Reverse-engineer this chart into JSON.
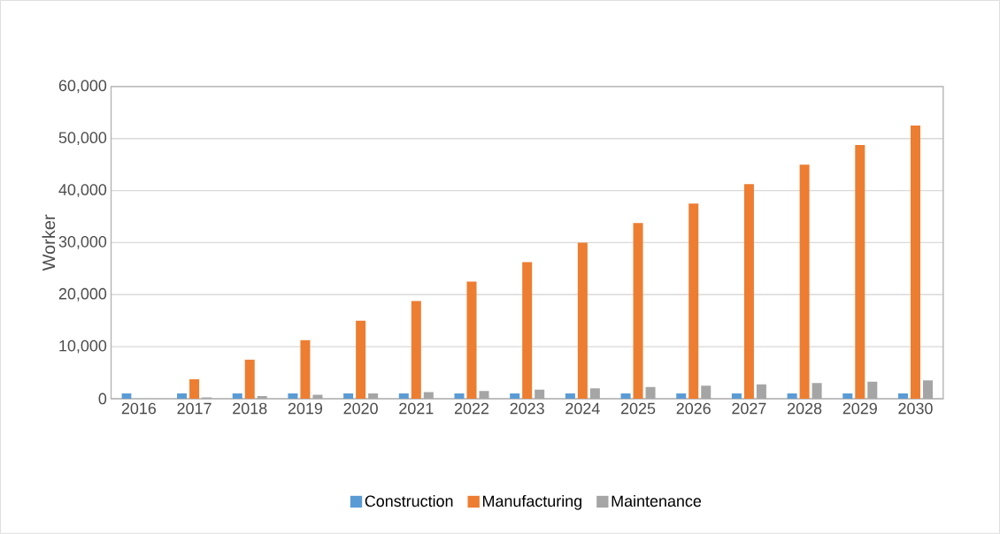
{
  "chart_data": {
    "type": "bar",
    "ylabel": "Worker",
    "categories": [
      "2016",
      "2017",
      "2018",
      "2019",
      "2020",
      "2021",
      "2022",
      "2023",
      "2024",
      "2025",
      "2026",
      "2027",
      "2028",
      "2029",
      "2030"
    ],
    "series": [
      {
        "name": "Construction",
        "color": "#5b9bd5",
        "values": [
          1000,
          1000,
          1000,
          1000,
          1000,
          1000,
          1000,
          1000,
          1000,
          1000,
          1000,
          1000,
          1000,
          1000,
          1000
        ]
      },
      {
        "name": "Manufacturing",
        "color": "#ed7d31",
        "values": [
          0,
          3750,
          7500,
          11250,
          15000,
          18750,
          22500,
          26250,
          30000,
          33750,
          37500,
          41250,
          45000,
          48750,
          52500
        ]
      },
      {
        "name": "Maintenance",
        "color": "#a5a5a5",
        "values": [
          0,
          250,
          500,
          750,
          1000,
          1250,
          1500,
          1750,
          2000,
          2250,
          2500,
          2750,
          3000,
          3250,
          3500
        ]
      }
    ],
    "ylim": [
      0,
      60000
    ],
    "yticks": [
      {
        "value": 0,
        "label": "0"
      },
      {
        "value": 10000,
        "label": "10,000"
      },
      {
        "value": 20000,
        "label": "20,000"
      },
      {
        "value": 30000,
        "label": "30,000"
      },
      {
        "value": 40000,
        "label": "40,000"
      },
      {
        "value": 50000,
        "label": "50,000"
      },
      {
        "value": 60000,
        "label": "60,000"
      }
    ],
    "grid": "y",
    "legend": "bottom"
  }
}
